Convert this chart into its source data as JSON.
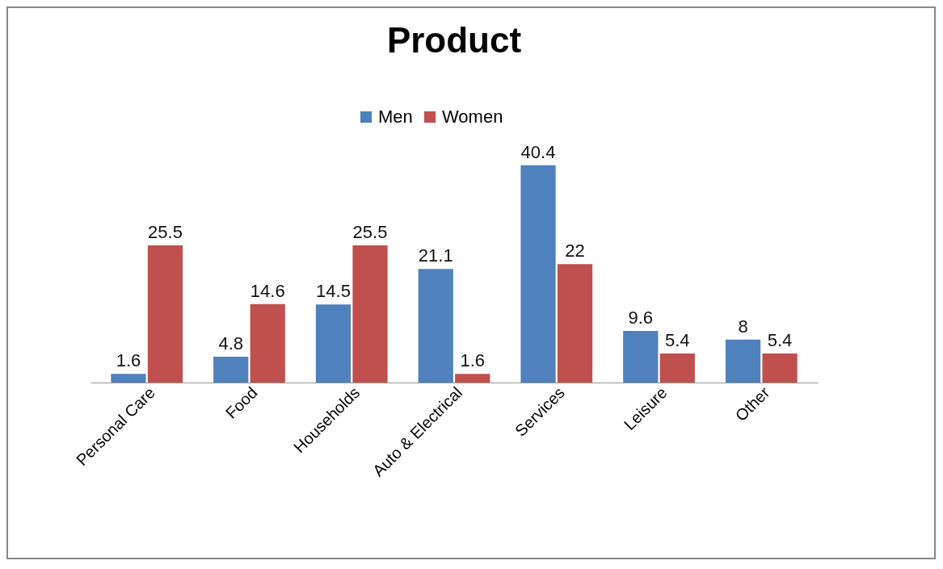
{
  "chart_data": {
    "type": "bar",
    "title": "Product",
    "categories": [
      "Personal Care",
      "Food",
      "Households",
      "Auto & Electrical",
      "Services",
      "Leisure",
      "Other"
    ],
    "series": [
      {
        "name": "Men",
        "color": "#4f81bd",
        "values": [
          1.6,
          4.8,
          14.5,
          21.1,
          40.4,
          9.6,
          8
        ]
      },
      {
        "name": "Women",
        "color": "#c0504d",
        "values": [
          25.5,
          14.6,
          25.5,
          1.6,
          22,
          5.4,
          5.4
        ]
      }
    ],
    "data_labels": true,
    "legend": "top",
    "tick_labels": "x"
  }
}
